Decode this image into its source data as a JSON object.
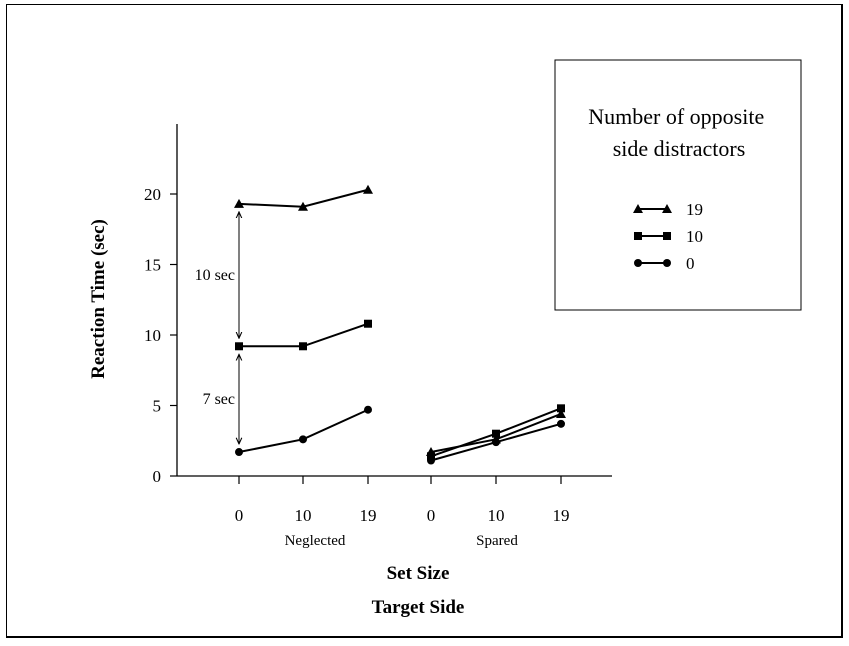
{
  "chart_data": {
    "type": "line",
    "ylabel": "Reaction Time (sec)",
    "xlabel": "Set Size",
    "xlabel2": "Target Side",
    "yticks": [
      0,
      5,
      10,
      15,
      20
    ],
    "ylim": [
      0,
      25
    ],
    "groups": [
      {
        "name": "Neglected",
        "categories": [
          "0",
          "10",
          "19"
        ]
      },
      {
        "name": "Spared",
        "categories": [
          "0",
          "10",
          "19"
        ]
      }
    ],
    "legend": {
      "title": "Number of opposite side distractors",
      "placement": "top-right",
      "entries": [
        "19",
        "10",
        "0"
      ]
    },
    "series": [
      {
        "name": "19",
        "marker": "triangle",
        "neglected": [
          19.3,
          19.1,
          20.3
        ],
        "spared": [
          1.7,
          2.6,
          4.4
        ]
      },
      {
        "name": "10",
        "marker": "square",
        "neglected": [
          9.2,
          9.2,
          10.8
        ],
        "spared": [
          1.4,
          3.0,
          4.8
        ]
      },
      {
        "name": "0",
        "marker": "circle",
        "neglected": [
          1.7,
          2.6,
          4.7
        ],
        "spared": [
          1.1,
          2.4,
          3.7
        ]
      }
    ],
    "annotations": [
      {
        "text": "10 sec",
        "group": "Neglected",
        "from_series": "10",
        "to_series": "19",
        "at_category": "0"
      },
      {
        "text": "7 sec",
        "group": "Neglected",
        "from_series": "0",
        "to_series": "10",
        "at_category": "0"
      }
    ]
  }
}
